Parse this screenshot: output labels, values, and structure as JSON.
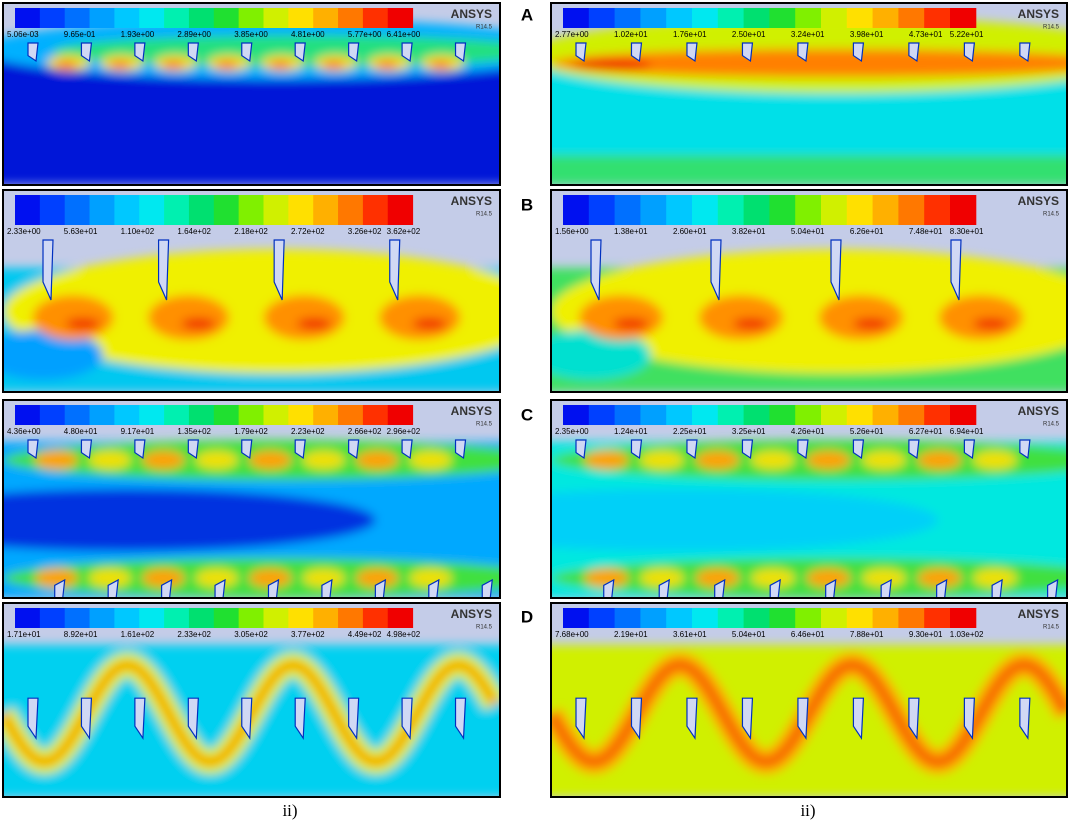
{
  "logo": "ANSYS",
  "version": "R14.5",
  "rows": [
    {
      "letter": "A",
      "panels": [
        {
          "scale": [
            "5.06e-03",
            "9.65e-01",
            "1.93e+00",
            "2.89e+00",
            "3.85e+00",
            "4.81e+00",
            "5.77e+00",
            "6.41e+00"
          ]
        },
        {
          "scale": [
            "2.77e+00",
            "1.02e+01",
            "1.76e+01",
            "2.50e+01",
            "3.24e+01",
            "3.98e+01",
            "4.73e+01",
            "5.22e+01"
          ]
        }
      ]
    },
    {
      "letter": "B",
      "panels": [
        {
          "scale": [
            "2.33e+00",
            "5.63e+01",
            "1.10e+02",
            "1.64e+02",
            "2.18e+02",
            "2.72e+02",
            "3.26e+02",
            "3.62e+02"
          ]
        },
        {
          "scale": [
            "1.56e+00",
            "1.38e+01",
            "2.60e+01",
            "3.82e+01",
            "5.04e+01",
            "6.26e+01",
            "7.48e+01",
            "8.30e+01"
          ]
        }
      ]
    },
    {
      "letter": "C",
      "panels": [
        {
          "scale": [
            "4.36e+00",
            "4.80e+01",
            "9.17e+01",
            "1.35e+02",
            "1.79e+02",
            "2.23e+02",
            "2.66e+02",
            "2.96e+02"
          ]
        },
        {
          "scale": [
            "2.35e+00",
            "1.24e+01",
            "2.25e+01",
            "3.25e+01",
            "4.26e+01",
            "5.26e+01",
            "6.27e+01",
            "6.94e+01"
          ]
        }
      ]
    },
    {
      "letter": "D",
      "panels": [
        {
          "scale": [
            "1.71e+01",
            "8.92e+01",
            "1.61e+02",
            "2.33e+02",
            "3.05e+02",
            "3.77e+02",
            "4.49e+02",
            "4.98e+02"
          ]
        },
        {
          "scale": [
            "7.68e+00",
            "2.19e+01",
            "3.61e+01",
            "5.04e+01",
            "6.46e+01",
            "7.88e+01",
            "9.30e+01",
            "1.03e+02"
          ]
        }
      ]
    }
  ],
  "captions": [
    "ii)",
    "ii)"
  ]
}
